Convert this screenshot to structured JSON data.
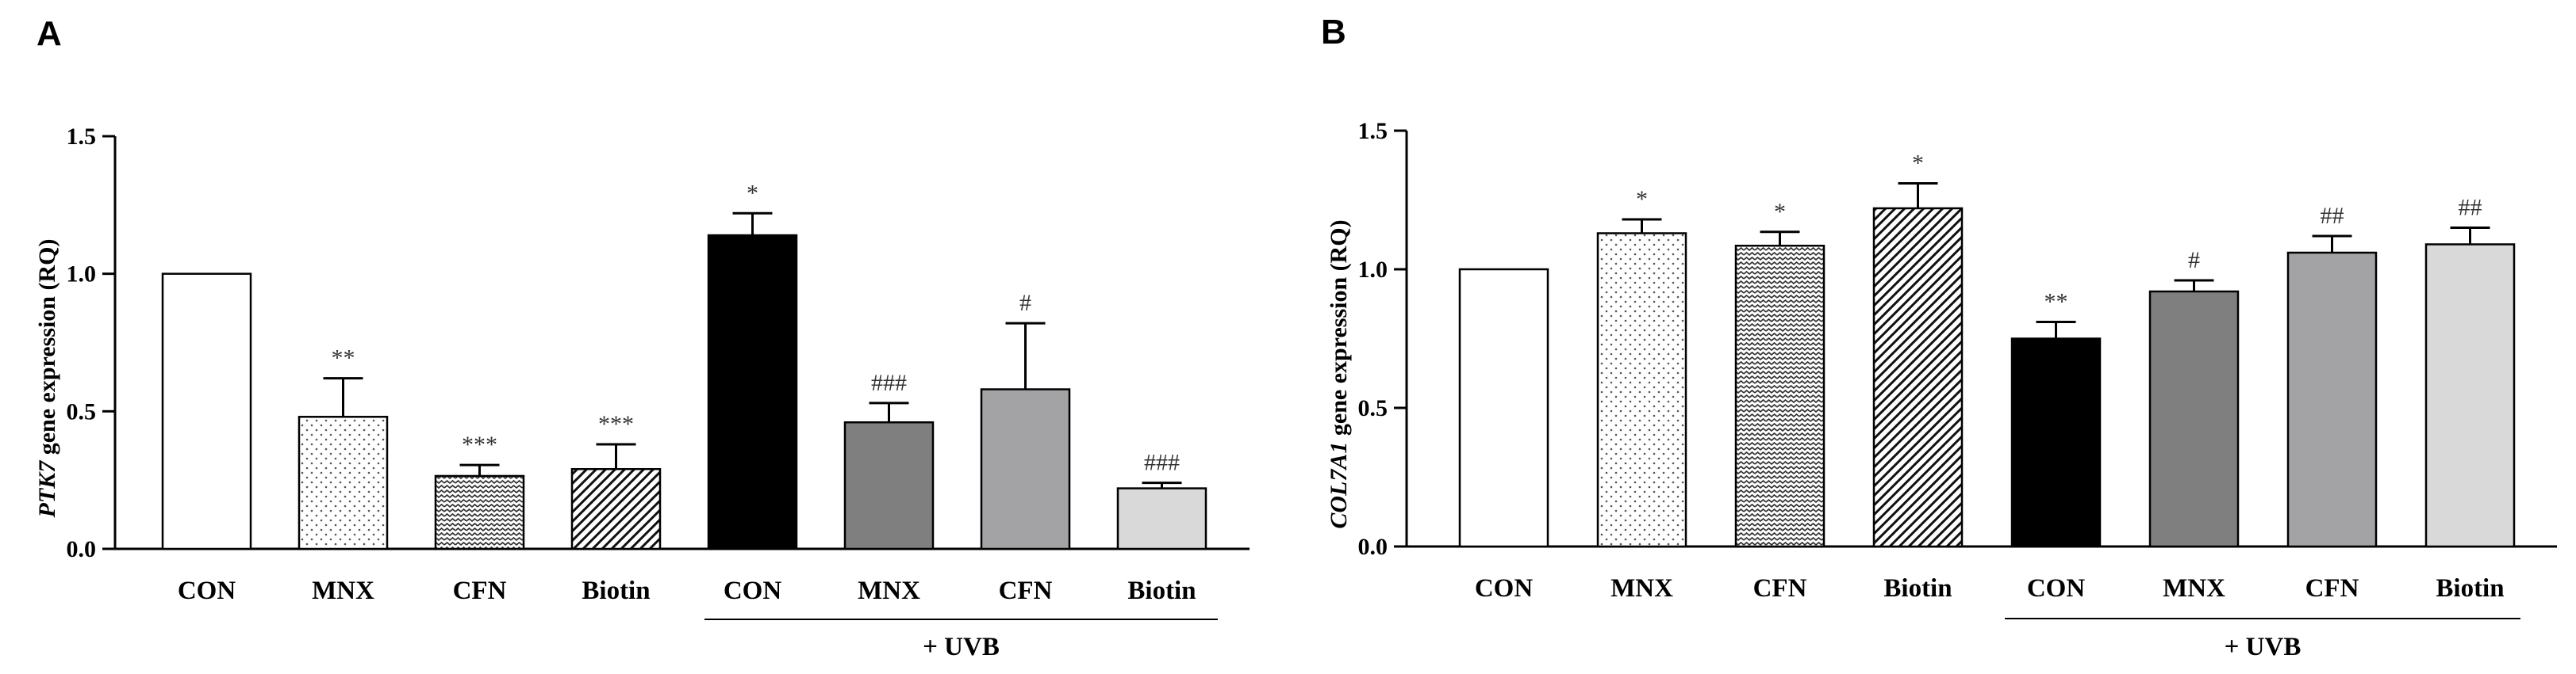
{
  "chart_data": [
    {
      "type": "bar",
      "panel": "A",
      "ylabel_gene": "PTK7",
      "ylabel_rest": " gene expression (RQ)",
      "ylim": [
        0,
        1.5
      ],
      "yticks": [
        "0.0",
        "0.5",
        "1.0",
        "1.5"
      ],
      "ytick_values": [
        0,
        0.5,
        1.0,
        1.5
      ],
      "group_label": "+ UVB",
      "categories": [
        "CON",
        "MNX",
        "CFN",
        "Biotin",
        "CON",
        "MNX",
        "CFN",
        "Biotin"
      ],
      "values": [
        1.0,
        0.48,
        0.265,
        0.29,
        1.14,
        0.46,
        0.58,
        0.22
      ],
      "errors": [
        0,
        0.14,
        0.04,
        0.09,
        0.08,
        0.07,
        0.24,
        0.02
      ],
      "significance": [
        "",
        "**",
        "***",
        "***",
        "*",
        "###",
        "#",
        "###"
      ],
      "fills": [
        "white",
        "dots",
        "waves",
        "hatch",
        "#000000",
        "#7f7f7f",
        "#a3a3a6",
        "#d9d9d9"
      ]
    },
    {
      "type": "bar",
      "panel": "B",
      "ylabel_gene": "COL7A1",
      "ylabel_rest": " gene expression (RQ)",
      "ylim": [
        0,
        1.5
      ],
      "yticks": [
        "0.0",
        "0.5",
        "1.0",
        "1.5"
      ],
      "ytick_values": [
        0,
        0.5,
        1.0,
        1.5
      ],
      "group_label": "+ UVB",
      "categories": [
        "CON",
        "MNX",
        "CFN",
        "Biotin",
        "CON",
        "MNX",
        "CFN",
        "Biotin"
      ],
      "values": [
        1.0,
        1.13,
        1.085,
        1.22,
        0.75,
        0.92,
        1.06,
        1.09
      ],
      "errors": [
        0,
        0.05,
        0.05,
        0.09,
        0.06,
        0.04,
        0.06,
        0.06
      ],
      "significance": [
        "",
        "*",
        "*",
        "*",
        "**",
        "#",
        "##",
        "##"
      ],
      "fills": [
        "white",
        "dots",
        "waves",
        "hatch",
        "#000000",
        "#7f7f7f",
        "#a3a3a6",
        "#d9d9d9"
      ]
    }
  ]
}
